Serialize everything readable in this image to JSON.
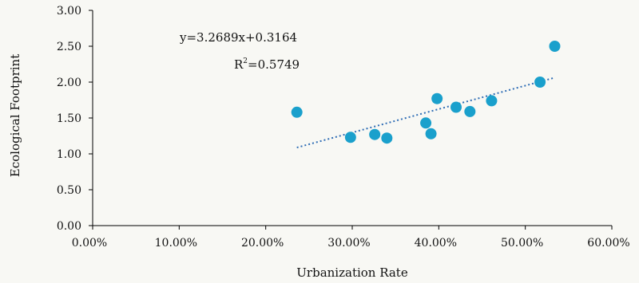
{
  "chart_data": {
    "type": "scatter",
    "xlabel": "Urbanization  Rate",
    "ylabel": "Ecological Footprint",
    "xlim": [
      0,
      0.6
    ],
    "ylim": [
      0,
      3
    ],
    "x_ticks": [
      "0.00%",
      "10.00%",
      "20.00%",
      "30.00%",
      "40.00%",
      "50.00%",
      "60.00%"
    ],
    "y_ticks": [
      "0.00",
      "0.50",
      "1.00",
      "1.50",
      "2.00",
      "2.50",
      "3.00"
    ],
    "grid": false,
    "point_color": "#1aa0cc",
    "trendline_color": "#2f6db5",
    "points": [
      {
        "x": 0.236,
        "y": 1.58
      },
      {
        "x": 0.298,
        "y": 1.23
      },
      {
        "x": 0.326,
        "y": 1.27
      },
      {
        "x": 0.34,
        "y": 1.22
      },
      {
        "x": 0.385,
        "y": 1.43
      },
      {
        "x": 0.391,
        "y": 1.28
      },
      {
        "x": 0.398,
        "y": 1.77
      },
      {
        "x": 0.42,
        "y": 1.65
      },
      {
        "x": 0.436,
        "y": 1.59
      },
      {
        "x": 0.461,
        "y": 1.74
      },
      {
        "x": 0.517,
        "y": 2.0
      },
      {
        "x": 0.534,
        "y": 2.5
      }
    ],
    "trendline": {
      "slope": 3.2689,
      "intercept": 0.3164,
      "x_range": [
        0.236,
        0.534
      ],
      "equation_text": "y=3.2689x+0.3164",
      "r2_prefix": "R",
      "r2_sup": "2",
      "r2_value": "=0.5749"
    }
  }
}
